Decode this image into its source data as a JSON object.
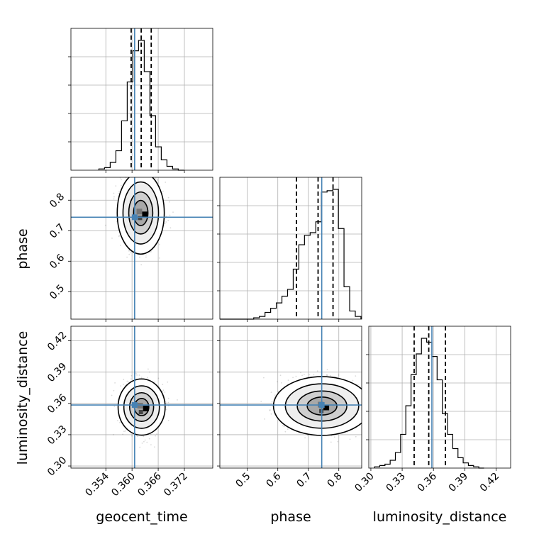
{
  "chart_data": {
    "type": "corner",
    "parameters": [
      "geocent_time",
      "phase",
      "luminosity_distance"
    ],
    "truth": {
      "geocent_time": 0.3606,
      "phase": 0.744,
      "luminosity_distance": 0.3585
    },
    "ranges": {
      "geocent_time": [
        0.346,
        0.3785
      ],
      "phase": [
        0.41,
        0.875
      ],
      "luminosity_distance": [
        0.298,
        0.434
      ]
    },
    "ticks": {
      "geocent_time": [
        0.354,
        0.36,
        0.366,
        0.372
      ],
      "phase": [
        0.5,
        0.6,
        0.7,
        0.8
      ],
      "luminosity_distance": [
        0.3,
        0.33,
        0.36,
        0.39,
        0.42
      ]
    },
    "tick_labels": {
      "geocent_time": [
        "0.354",
        "0.360",
        "0.366",
        "0.372"
      ],
      "phase_x": [
        "0.5",
        "0.6",
        "0.7",
        "0.8"
      ],
      "phase_y": [
        "0.5",
        "0.6",
        "0.7",
        "0.8"
      ],
      "luminosity_distance": [
        "0.30",
        "0.33",
        "0.36",
        "0.39",
        "0.42"
      ]
    },
    "quantiles": {
      "geocent_time": [
        0.3598,
        0.3621,
        0.3644
      ],
      "phase": [
        0.661,
        0.732,
        0.781
      ],
      "luminosity_distance": [
        0.3415,
        0.3555,
        0.3715
      ]
    },
    "histograms": {
      "geocent_time": {
        "edges": [
          0.3524,
          0.3537,
          0.355,
          0.3563,
          0.3576,
          0.3589,
          0.3602,
          0.3615,
          0.3628,
          0.3641,
          0.3654,
          0.3667,
          0.368,
          0.3693,
          0.3706,
          0.3719
        ],
        "counts": [
          1,
          2,
          6,
          15,
          38,
          68,
          92,
          100,
          76,
          42,
          18,
          8,
          3,
          1,
          0
        ]
      },
      "phase": {
        "edges": [
          0.41,
          0.4285,
          0.447,
          0.4655,
          0.484,
          0.5025,
          0.521,
          0.5395,
          0.558,
          0.5765,
          0.595,
          0.6135,
          0.632,
          0.6505,
          0.669,
          0.6875,
          0.706,
          0.7245,
          0.743,
          0.7615,
          0.78,
          0.7985,
          0.817,
          0.8355,
          0.854,
          0.8725
        ],
        "counts": [
          0,
          0,
          0,
          0,
          0,
          0,
          1,
          2,
          5,
          8,
          12,
          17,
          22,
          37,
          55,
          62,
          64,
          72,
          94,
          95,
          96,
          67,
          24,
          6,
          2
        ]
      },
      "luminosity_distance": {
        "edges": [
          0.3035,
          0.3085,
          0.3135,
          0.3185,
          0.3235,
          0.3285,
          0.3335,
          0.3385,
          0.3435,
          0.3485,
          0.3535,
          0.3585,
          0.3635,
          0.3685,
          0.3735,
          0.3785,
          0.3835,
          0.3885,
          0.3935,
          0.3985,
          0.4035,
          0.4085
        ],
        "counts": [
          1,
          2,
          3,
          6,
          12,
          26,
          48,
          72,
          88,
          100,
          97,
          86,
          68,
          42,
          26,
          15,
          8,
          4,
          2,
          1,
          0
        ]
      }
    },
    "contours_2d": {
      "phase_vs_geocent_time": {
        "center": [
          0.362,
          0.758
        ],
        "sigma": [
          0.0022,
          0.055
        ]
      },
      "luminosity_distance_vs_geocent_time": {
        "center": [
          0.3622,
          0.3565
        ],
        "sigma": [
          0.0022,
          0.011
        ]
      },
      "luminosity_distance_vs_phase": {
        "center": [
          0.745,
          0.3575
        ],
        "sigma": [
          0.065,
          0.0115
        ]
      }
    },
    "axis_labels": [
      "geocent_time",
      "phase",
      "luminosity_distance"
    ],
    "grid": true,
    "colors": {
      "truth": "#4682b4",
      "line": "#000000",
      "grid": "#b0b0b0"
    }
  }
}
